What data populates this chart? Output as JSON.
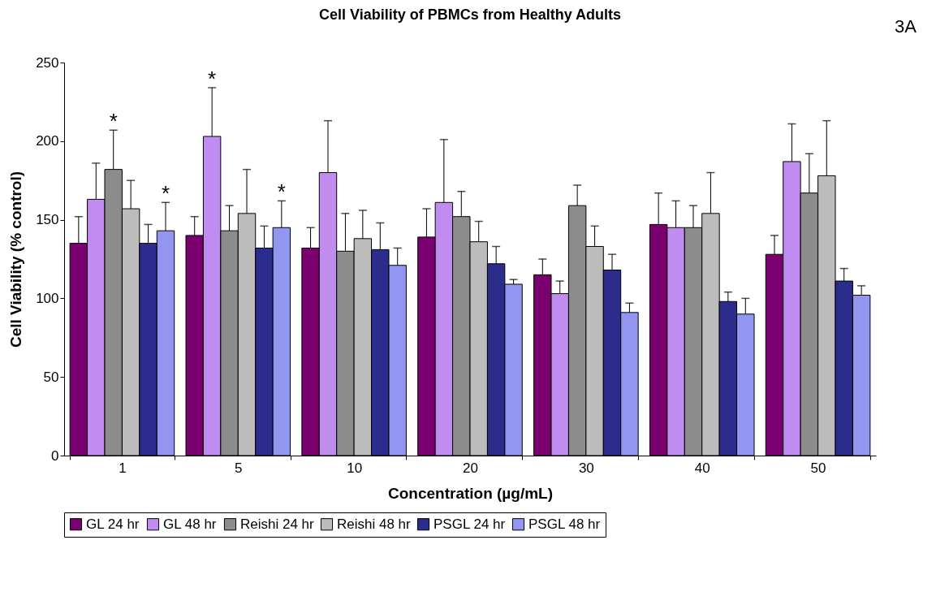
{
  "chart_data": {
    "type": "bar",
    "title": "Cell Viability of PBMCs from Healthy Adults",
    "xlabel": "Concentration (µg/mL)",
    "ylabel": "Cell Viability (% control)",
    "categories": [
      "1",
      "5",
      "10",
      "20",
      "30",
      "40",
      "50"
    ],
    "series": [
      {
        "name": "GL 24 hr",
        "color": "#7a006f",
        "values": [
          135,
          140,
          132,
          139,
          115,
          147,
          128
        ],
        "errors": [
          [
            135,
            152
          ],
          [
            140,
            152
          ],
          [
            132,
            145
          ],
          [
            139,
            157
          ],
          [
            115,
            125
          ],
          [
            147,
            167
          ],
          [
            128,
            140
          ]
        ]
      },
      {
        "name": "GL 48 hr",
        "color": "#c08cf0",
        "values": [
          163,
          203,
          180,
          161,
          103,
          145,
          187
        ],
        "value_labels": [
          null,
          "*",
          null,
          null,
          null,
          null,
          null
        ],
        "errors": [
          [
            163,
            186
          ],
          [
            203,
            234
          ],
          [
            180,
            213
          ],
          [
            161,
            201
          ],
          [
            103,
            111
          ],
          [
            145,
            162
          ],
          [
            187,
            211
          ]
        ]
      },
      {
        "name": "Reishi 24 hr",
        "color": "#8c8c8c",
        "values": [
          182,
          143,
          130,
          152,
          159,
          145,
          167
        ],
        "value_labels": [
          "*",
          null,
          null,
          null,
          null,
          null,
          null
        ],
        "errors": [
          [
            182,
            207
          ],
          [
            143,
            159
          ],
          [
            130,
            154
          ],
          [
            152,
            168
          ],
          [
            159,
            172
          ],
          [
            145,
            159
          ],
          [
            167,
            192
          ]
        ]
      },
      {
        "name": "Reishi 48 hr",
        "color": "#bcbcbc",
        "values": [
          157,
          154,
          138,
          136,
          133,
          154,
          178
        ],
        "errors": [
          [
            157,
            175
          ],
          [
            154,
            182
          ],
          [
            138,
            156
          ],
          [
            136,
            149
          ],
          [
            133,
            146
          ],
          [
            154,
            180
          ],
          [
            178,
            213
          ]
        ]
      },
      {
        "name": "PSGL 24 hr",
        "color": "#2c2c8c",
        "values": [
          135,
          132,
          131,
          122,
          118,
          98,
          111
        ],
        "errors": [
          [
            135,
            147
          ],
          [
            132,
            146
          ],
          [
            131,
            148
          ],
          [
            122,
            133
          ],
          [
            118,
            128
          ],
          [
            98,
            104
          ],
          [
            111,
            119
          ]
        ]
      },
      {
        "name": "PSGL 48 hr",
        "color": "#9296f0",
        "values": [
          143,
          145,
          121,
          109,
          91,
          90,
          102
        ],
        "value_labels": [
          "*",
          "*",
          null,
          null,
          null,
          null,
          null
        ],
        "errors": [
          [
            143,
            161
          ],
          [
            145,
            162
          ],
          [
            121,
            132
          ],
          [
            109,
            112
          ],
          [
            91,
            97
          ],
          [
            90,
            100
          ],
          [
            102,
            108
          ]
        ]
      }
    ],
    "ylim": [
      0,
      250
    ],
    "yticks": [
      0,
      50,
      100,
      150,
      200,
      250
    ],
    "grid": false,
    "legend": "bottom",
    "annotations": [
      "3A"
    ]
  }
}
